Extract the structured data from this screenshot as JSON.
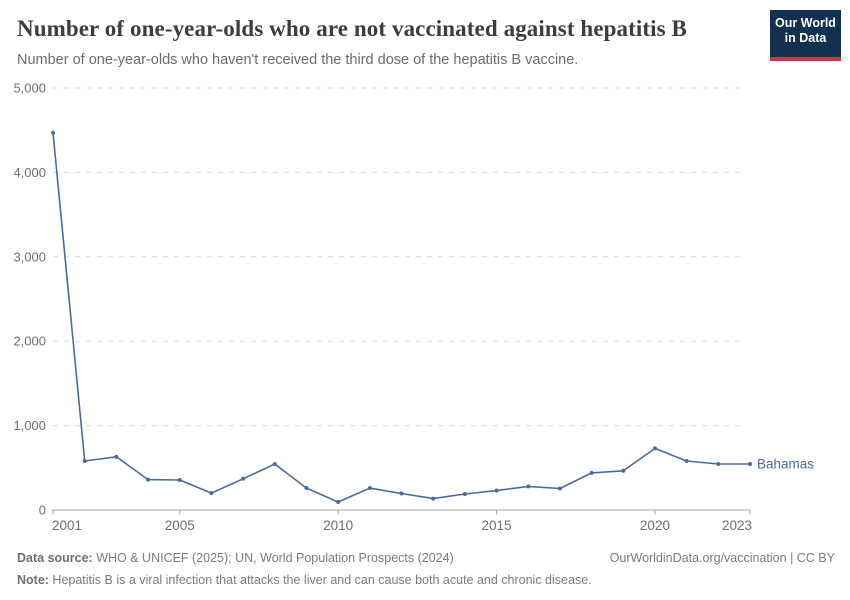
{
  "logo": {
    "line1": "Our World",
    "line2": "in Data",
    "bg_color": "#12304f",
    "bar_color": "#cf3444"
  },
  "chart_data": {
    "type": "line",
    "title": "Number of one-year-olds who are not vaccinated against hepatitis B",
    "subtitle": "Number of one-year-olds who haven't received the third dose of the hepatitis B vaccine.",
    "x": [
      2001,
      2002,
      2003,
      2004,
      2005,
      2006,
      2007,
      2008,
      2009,
      2010,
      2011,
      2012,
      2013,
      2014,
      2015,
      2016,
      2017,
      2018,
      2019,
      2020,
      2021,
      2022,
      2023
    ],
    "series": [
      {
        "name": "Bahamas",
        "color": "#4c6a9f",
        "values": [
          4470,
          580,
          630,
          360,
          355,
          200,
          370,
          545,
          260,
          95,
          260,
          195,
          135,
          190,
          230,
          280,
          255,
          440,
          465,
          730,
          580,
          545,
          545
        ]
      }
    ],
    "ylim": [
      0,
      5000
    ],
    "yticks": [
      0,
      1000,
      2000,
      3000,
      4000,
      5000
    ],
    "ytick_labels": [
      "0",
      "1,000",
      "2,000",
      "3,000",
      "4,000",
      "5,000"
    ],
    "xticks": [
      2001,
      2005,
      2010,
      2015,
      2020,
      2023
    ],
    "grid": "horizontal-dashed",
    "legend_position": "end-of-line-label",
    "colors": {
      "grid": "#dcdcdc",
      "axis": "#a5a5a5",
      "tick_text": "#6e6e6e"
    }
  },
  "footer": {
    "datasource_label": "Data source:",
    "datasource_text": " WHO & UNICEF (2025); UN, World Population Prospects (2024)",
    "note_label": "Note:",
    "note_text": " Hepatitis B is a viral infection that attacks the liver and can cause both acute and chronic disease.",
    "link": "OurWorldinData.org/vaccination | CC BY"
  }
}
